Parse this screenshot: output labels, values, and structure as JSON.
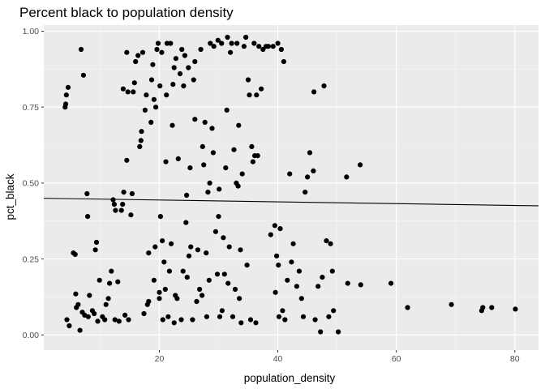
{
  "chart_data": {
    "type": "scatter",
    "title": "Percent black to population density",
    "xlabel": "population_density",
    "ylabel": "pct_black",
    "xlim": [
      0.5,
      84
    ],
    "ylim": [
      -0.05,
      1.02
    ],
    "x_ticks": [
      20,
      40,
      60,
      80
    ],
    "x_tick_labels": [
      "20",
      "40",
      "60",
      "80"
    ],
    "y_ticks": [
      0,
      0.25,
      0.5,
      0.75,
      1.0
    ],
    "y_tick_labels": [
      "0.00",
      "0.25",
      "0.50",
      "0.75",
      "1.00"
    ],
    "grid": true,
    "legend": "none",
    "trend_line": {
      "x": [
        0.5,
        84
      ],
      "y": [
        0.45,
        0.425
      ]
    },
    "colors": {
      "panel": "#ebebeb",
      "grid_major": "#ffffff",
      "grid_minor": "#f5f5f5",
      "point": "#000000",
      "line": "#000000"
    },
    "points": [
      [
        4.2,
        0.76
      ],
      [
        4.1,
        0.75
      ],
      [
        4.3,
        0.79
      ],
      [
        4.6,
        0.815
      ],
      [
        4.8,
        0.03
      ],
      [
        4.4,
        0.05
      ],
      [
        5.5,
        0.27
      ],
      [
        5.8,
        0.265
      ],
      [
        5.9,
        0.135
      ],
      [
        6.0,
        0.09
      ],
      [
        6.3,
        0.1
      ],
      [
        6.6,
        0.015
      ],
      [
        6.8,
        0.94
      ],
      [
        7.2,
        0.855
      ],
      [
        7.0,
        0.075
      ],
      [
        7.4,
        0.065
      ],
      [
        7.8,
        0.465
      ],
      [
        7.9,
        0.39
      ],
      [
        8.2,
        0.13
      ],
      [
        8.0,
        0.06
      ],
      [
        8.7,
        0.08
      ],
      [
        9.0,
        0.07
      ],
      [
        9.2,
        0.28
      ],
      [
        9.4,
        0.305
      ],
      [
        9.6,
        0.045
      ],
      [
        9.9,
        0.18
      ],
      [
        10.4,
        0.06
      ],
      [
        10.8,
        0.05
      ],
      [
        11.0,
        0.1
      ],
      [
        11.4,
        0.12
      ],
      [
        11.6,
        0.17
      ],
      [
        11.9,
        0.21
      ],
      [
        12.2,
        0.445
      ],
      [
        12.4,
        0.43
      ],
      [
        12.6,
        0.41
      ],
      [
        12.5,
        0.05
      ],
      [
        13.0,
        0.175
      ],
      [
        13.2,
        0.045
      ],
      [
        13.6,
        0.41
      ],
      [
        13.8,
        0.43
      ],
      [
        14.0,
        0.47
      ],
      [
        13.9,
        0.81
      ],
      [
        14.2,
        0.065
      ],
      [
        14.5,
        0.575
      ],
      [
        14.5,
        0.93
      ],
      [
        14.7,
        0.8
      ],
      [
        14.8,
        0.05
      ],
      [
        15.2,
        0.395
      ],
      [
        15.4,
        0.465
      ],
      [
        15.6,
        0.8
      ],
      [
        15.8,
        0.83
      ],
      [
        16.0,
        0.9
      ],
      [
        16.4,
        0.92
      ],
      [
        16.7,
        0.62
      ],
      [
        16.9,
        0.64
      ],
      [
        17.0,
        0.67
      ],
      [
        17.2,
        0.93
      ],
      [
        17.4,
        0.07
      ],
      [
        17.6,
        0.74
      ],
      [
        17.8,
        0.79
      ],
      [
        18.0,
        0.1
      ],
      [
        18.2,
        0.11
      ],
      [
        18.2,
        0.27
      ],
      [
        18.6,
        0.7
      ],
      [
        18.7,
        0.84
      ],
      [
        18.9,
        0.89
      ],
      [
        19.1,
        0.18
      ],
      [
        19.1,
        0.775
      ],
      [
        19.3,
        0.29
      ],
      [
        19.4,
        0.75
      ],
      [
        19.6,
        0.94
      ],
      [
        19.8,
        0.96
      ],
      [
        20.0,
        0.12
      ],
      [
        20.0,
        0.14
      ],
      [
        20.1,
        0.82
      ],
      [
        20.2,
        0.39
      ],
      [
        20.5,
        0.31
      ],
      [
        20.4,
        0.93
      ],
      [
        20.6,
        0.05
      ],
      [
        20.8,
        0.24
      ],
      [
        21.0,
        0.15
      ],
      [
        21.1,
        0.57
      ],
      [
        21.2,
        0.79
      ],
      [
        21.3,
        0.96
      ],
      [
        21.5,
        0.06
      ],
      [
        21.7,
        0.21
      ],
      [
        21.9,
        0.96
      ],
      [
        22.0,
        0.3
      ],
      [
        22.2,
        0.69
      ],
      [
        22.3,
        0.825
      ],
      [
        22.5,
        0.04
      ],
      [
        22.5,
        0.88
      ],
      [
        22.7,
        0.13
      ],
      [
        22.8,
        0.91
      ],
      [
        23.0,
        0.12
      ],
      [
        23.2,
        0.58
      ],
      [
        23.5,
        0.86
      ],
      [
        23.7,
        0.05
      ],
      [
        23.8,
        0.94
      ],
      [
        24.0,
        0.21
      ],
      [
        24.1,
        0.82
      ],
      [
        24.3,
        0.92
      ],
      [
        24.5,
        0.37
      ],
      [
        24.6,
        0.46
      ],
      [
        24.7,
        0.19
      ],
      [
        24.9,
        0.88
      ],
      [
        25.0,
        0.26
      ],
      [
        25.2,
        0.55
      ],
      [
        25.3,
        0.29
      ],
      [
        25.6,
        0.05
      ],
      [
        25.8,
        0.84
      ],
      [
        26.0,
        0.71
      ],
      [
        26.0,
        0.9
      ],
      [
        26.3,
        0.11
      ],
      [
        26.5,
        0.28
      ],
      [
        26.8,
        0.15
      ],
      [
        27.0,
        0.94
      ],
      [
        27.2,
        0.13
      ],
      [
        27.3,
        0.62
      ],
      [
        27.5,
        0.56
      ],
      [
        27.7,
        0.7
      ],
      [
        27.9,
        0.27
      ],
      [
        28.0,
        0.06
      ],
      [
        28.2,
        0.47
      ],
      [
        28.4,
        0.18
      ],
      [
        28.5,
        0.5
      ],
      [
        28.6,
        0.96
      ],
      [
        28.9,
        0.68
      ],
      [
        29.1,
        0.6
      ],
      [
        29.2,
        0.95
      ],
      [
        29.5,
        0.34
      ],
      [
        29.8,
        0.2
      ],
      [
        29.9,
        0.97
      ],
      [
        30.0,
        0.39
      ],
      [
        30.1,
        0.48
      ],
      [
        30.2,
        0.06
      ],
      [
        30.5,
        0.96
      ],
      [
        30.6,
        0.08
      ],
      [
        30.8,
        0.32
      ],
      [
        31.0,
        0.2
      ],
      [
        31.2,
        0.55
      ],
      [
        31.4,
        0.74
      ],
      [
        31.5,
        0.98
      ],
      [
        31.6,
        0.17
      ],
      [
        31.8,
        0.29
      ],
      [
        32.0,
        0.93
      ],
      [
        32.2,
        0.96
      ],
      [
        32.4,
        0.06
      ],
      [
        32.6,
        0.61
      ],
      [
        32.8,
        0.15
      ],
      [
        33.0,
        0.5
      ],
      [
        33.1,
        0.96
      ],
      [
        33.3,
        0.49
      ],
      [
        33.4,
        0.69
      ],
      [
        33.5,
        0.12
      ],
      [
        33.7,
        0.28
      ],
      [
        33.8,
        0.04
      ],
      [
        34.0,
        0.53
      ],
      [
        34.3,
        0.95
      ],
      [
        34.6,
        0.98
      ],
      [
        34.8,
        0.23
      ],
      [
        35.0,
        0.84
      ],
      [
        35.2,
        0.79
      ],
      [
        35.4,
        0.05
      ],
      [
        35.6,
        0.62
      ],
      [
        35.8,
        0.57
      ],
      [
        36.0,
        0.96
      ],
      [
        36.1,
        0.59
      ],
      [
        36.3,
        0.04
      ],
      [
        36.4,
        0.79
      ],
      [
        36.6,
        0.59
      ],
      [
        36.8,
        0.95
      ],
      [
        37.2,
        0.81
      ],
      [
        37.5,
        0.94
      ],
      [
        38.0,
        0.95
      ],
      [
        38.4,
        0.95
      ],
      [
        38.8,
        0.33
      ],
      [
        39.2,
        0.95
      ],
      [
        39.5,
        0.36
      ],
      [
        39.6,
        0.14
      ],
      [
        39.8,
        0.26
      ],
      [
        40.0,
        0.96
      ],
      [
        40.1,
        0.23
      ],
      [
        40.2,
        0.06
      ],
      [
        40.4,
        0.35
      ],
      [
        40.6,
        0.94
      ],
      [
        40.8,
        0.08
      ],
      [
        41.0,
        0.9
      ],
      [
        41.2,
        0.05
      ],
      [
        41.6,
        0.18
      ],
      [
        42.0,
        0.53
      ],
      [
        42.3,
        0.24
      ],
      [
        42.6,
        0.3
      ],
      [
        43.2,
        0.16
      ],
      [
        43.6,
        0.21
      ],
      [
        44.0,
        0.12
      ],
      [
        44.3,
        0.06
      ],
      [
        44.6,
        0.47
      ],
      [
        45.0,
        0.52
      ],
      [
        45.4,
        0.6
      ],
      [
        46.0,
        0.54
      ],
      [
        46.1,
        0.8
      ],
      [
        46.3,
        0.05
      ],
      [
        46.8,
        0.16
      ],
      [
        47.2,
        0.01
      ],
      [
        47.5,
        0.19
      ],
      [
        47.8,
        0.82
      ],
      [
        48.2,
        0.31
      ],
      [
        48.6,
        0.06
      ],
      [
        48.9,
        0.3
      ],
      [
        49.2,
        0.21
      ],
      [
        49.4,
        0.08
      ],
      [
        50.2,
        0.01
      ],
      [
        51.6,
        0.52
      ],
      [
        51.8,
        0.17
      ],
      [
        53.9,
        0.56
      ],
      [
        54.0,
        0.165
      ],
      [
        59.1,
        0.17
      ],
      [
        61.9,
        0.09
      ],
      [
        69.3,
        0.1
      ],
      [
        74.4,
        0.08
      ],
      [
        74.6,
        0.09
      ],
      [
        76.1,
        0.09
      ],
      [
        80.1,
        0.085
      ]
    ]
  }
}
